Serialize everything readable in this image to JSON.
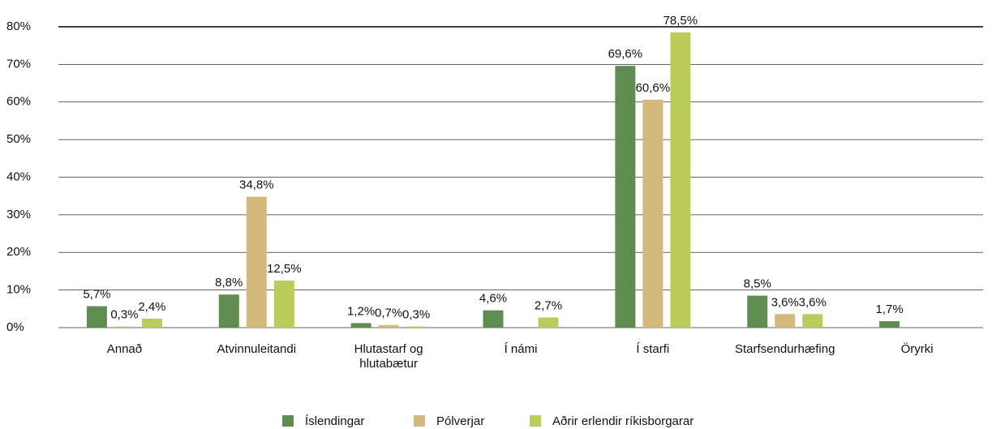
{
  "chart_data": {
    "type": "bar",
    "categories": [
      "Annað",
      "Atvinnuleitandi",
      "Hlutastarf og hlutabætur",
      "Í námi",
      "Í starfi",
      "Starfsendurhæfing",
      "Öryrki"
    ],
    "series": [
      {
        "name": "Íslendingar",
        "color": "#5f8d51",
        "values": [
          5.7,
          8.8,
          1.2,
          4.6,
          69.6,
          8.5,
          1.7
        ],
        "value_labels": [
          "5,7%",
          "8,8%",
          "1,2%",
          "4,6%",
          "69,6%",
          "8,5%",
          "1,7%"
        ]
      },
      {
        "name": "Pólverjar",
        "color": "#d3b97c",
        "values": [
          0.3,
          34.8,
          0.7,
          null,
          60.6,
          3.6,
          null
        ],
        "value_labels": [
          "0,3%",
          "34,8%",
          "0,7%",
          null,
          "60,6%",
          "3,6%",
          null
        ]
      },
      {
        "name": "Aðrir erlendir ríkisborgarar",
        "color": "#bccb5c",
        "values": [
          2.4,
          12.5,
          0.3,
          2.7,
          78.5,
          3.6,
          null
        ],
        "value_labels": [
          "2,4%",
          "12,5%",
          "0,3%",
          "2,7%",
          "78,5%",
          "3,6%",
          null
        ]
      }
    ],
    "ylim": [
      0,
      80
    ],
    "yticks": [
      {
        "value": 0,
        "label": "0%"
      },
      {
        "value": 10,
        "label": "10%"
      },
      {
        "value": 20,
        "label": "20%"
      },
      {
        "value": 30,
        "label": "30%"
      },
      {
        "value": 40,
        "label": "40%"
      },
      {
        "value": 50,
        "label": "50%"
      },
      {
        "value": 60,
        "label": "60%"
      },
      {
        "value": 70,
        "label": "70%"
      },
      {
        "value": 80,
        "label": "80%"
      }
    ],
    "grid": true,
    "legend": "bottom"
  }
}
